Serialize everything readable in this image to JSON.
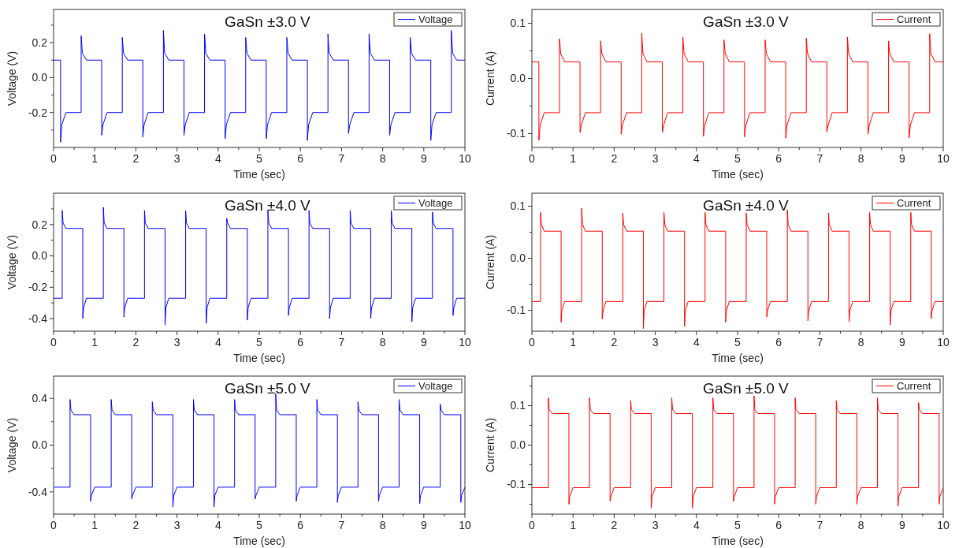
{
  "chart_data": [
    {
      "type": "line",
      "title": "GaSn ±3.0 V",
      "xlabel": "Time (sec)",
      "ylabel": "Voltage (V)",
      "legend": "top right",
      "xlim": [
        0,
        10
      ],
      "xticks": [
        0,
        {
          "value": 0.5,
          "label": null
        },
        1,
        {
          "value": 1.5,
          "label": null
        },
        2,
        {
          "value": 2.5,
          "label": null
        },
        3,
        {
          "value": 3.5,
          "label": null
        },
        4,
        {
          "value": 4.5,
          "label": null
        },
        5,
        {
          "value": 5.5,
          "label": null
        },
        6,
        {
          "value": 6.5,
          "label": null
        },
        7,
        {
          "value": 7.5,
          "label": null
        },
        8,
        {
          "value": 8.5,
          "label": null
        },
        9,
        {
          "value": 9.5,
          "label": null
        },
        10
      ],
      "ylim": [
        -0.4,
        0.39
      ],
      "yticks": [
        {
          "value": -0.3,
          "label": null
        },
        {
          "value": -0.2,
          "label": "-0.2"
        },
        {
          "value": -0.1,
          "label": null
        },
        {
          "value": 0,
          "label": "0.0"
        },
        {
          "value": 0.1,
          "label": null
        },
        {
          "value": 0.2,
          "label": "0.2"
        },
        {
          "value": 0.3,
          "label": null
        }
      ],
      "x": [
        0,
        0.17,
        0.17,
        0.2,
        0.3,
        0.67,
        0.67,
        0.7,
        0.8,
        1.17,
        1.17,
        1.2,
        1.3,
        1.67,
        1.67,
        1.7,
        1.8,
        2.17,
        2.17,
        2.2,
        2.3,
        2.67,
        2.67,
        2.7,
        2.8,
        3.17,
        3.17,
        3.2,
        3.3,
        3.67,
        3.67,
        3.7,
        3.8,
        4.17,
        4.17,
        4.2,
        4.3,
        4.67,
        4.67,
        4.7,
        4.8,
        5.17,
        5.17,
        5.2,
        5.3,
        5.67,
        5.67,
        5.7,
        5.8,
        6.17,
        6.17,
        6.2,
        6.3,
        6.67,
        6.67,
        6.7,
        6.8,
        7.17,
        7.17,
        7.2,
        7.3,
        7.67,
        7.67,
        7.7,
        7.8,
        8.17,
        8.17,
        8.2,
        8.3,
        8.67,
        8.67,
        8.7,
        8.8,
        9.17,
        9.17,
        9.2,
        9.3,
        9.67,
        9.67,
        9.7,
        9.8,
        10
      ],
      "series": [
        {
          "name": "Voltage",
          "color": "#0000ff",
          "values": [
            0.1,
            0.1,
            -0.37,
            -0.27,
            -0.2,
            -0.2,
            0.24,
            0.14,
            0.1,
            0.1,
            -0.33,
            -0.27,
            -0.2,
            -0.2,
            0.23,
            0.14,
            0.1,
            0.1,
            -0.34,
            -0.27,
            -0.2,
            -0.2,
            0.27,
            0.14,
            0.1,
            0.1,
            -0.33,
            -0.27,
            -0.2,
            -0.2,
            0.25,
            0.14,
            0.1,
            0.1,
            -0.35,
            -0.27,
            -0.2,
            -0.2,
            0.23,
            0.14,
            0.1,
            0.1,
            -0.35,
            -0.27,
            -0.2,
            -0.2,
            0.23,
            0.14,
            0.1,
            0.1,
            -0.36,
            -0.27,
            -0.2,
            -0.2,
            0.25,
            0.14,
            0.1,
            0.1,
            -0.32,
            -0.27,
            -0.2,
            -0.2,
            0.25,
            0.14,
            0.1,
            0.1,
            -0.33,
            -0.27,
            -0.2,
            -0.2,
            0.23,
            0.14,
            0.1,
            0.1,
            -0.36,
            -0.27,
            -0.2,
            -0.2,
            0.27,
            0.14,
            0.1,
            0.1
          ]
        }
      ]
    },
    {
      "type": "line",
      "title": "GaSn ±3.0 V",
      "xlabel": "Time (sec)",
      "ylabel": "Current (A)",
      "legend": "top right",
      "xlim": [
        0,
        10
      ],
      "xticks": [
        0,
        {
          "value": 0.5,
          "label": null
        },
        1,
        {
          "value": 1.5,
          "label": null
        },
        2,
        {
          "value": 2.5,
          "label": null
        },
        3,
        {
          "value": 3.5,
          "label": null
        },
        4,
        {
          "value": 4.5,
          "label": null
        },
        5,
        {
          "value": 5.5,
          "label": null
        },
        6,
        {
          "value": 6.5,
          "label": null
        },
        7,
        {
          "value": 7.5,
          "label": null
        },
        8,
        {
          "value": 8.5,
          "label": null
        },
        9,
        {
          "value": 9.5,
          "label": null
        },
        10
      ],
      "ylim": [
        -0.125,
        0.125
      ],
      "yticks": [
        {
          "value": -0.1,
          "label": "-0.1"
        },
        {
          "value": -0.05,
          "label": null
        },
        {
          "value": 0,
          "label": "0.0"
        },
        {
          "value": 0.05,
          "label": null
        },
        {
          "value": 0.1,
          "label": "0.1"
        }
      ],
      "x": [
        0,
        0.17,
        0.17,
        0.2,
        0.3,
        0.67,
        0.67,
        0.7,
        0.8,
        1.17,
        1.17,
        1.2,
        1.3,
        1.67,
        1.67,
        1.7,
        1.8,
        2.17,
        2.17,
        2.2,
        2.3,
        2.67,
        2.67,
        2.7,
        2.8,
        3.17,
        3.17,
        3.2,
        3.3,
        3.67,
        3.67,
        3.7,
        3.8,
        4.17,
        4.17,
        4.2,
        4.3,
        4.67,
        4.67,
        4.7,
        4.8,
        5.17,
        5.17,
        5.2,
        5.3,
        5.67,
        5.67,
        5.7,
        5.8,
        6.17,
        6.17,
        6.2,
        6.3,
        6.67,
        6.67,
        6.7,
        6.8,
        7.17,
        7.17,
        7.2,
        7.3,
        7.67,
        7.67,
        7.7,
        7.8,
        8.17,
        8.17,
        8.2,
        8.3,
        8.67,
        8.67,
        8.7,
        8.8,
        9.17,
        9.17,
        9.2,
        9.3,
        9.67,
        9.67,
        9.7,
        9.8,
        10
      ],
      "series": [
        {
          "name": "Current",
          "color": "#ff0000",
          "values": [
            0.03,
            0.03,
            -0.112,
            -0.085,
            -0.062,
            -0.062,
            0.072,
            0.045,
            0.03,
            0.03,
            -0.098,
            -0.085,
            -0.062,
            -0.062,
            0.068,
            0.045,
            0.03,
            0.03,
            -0.101,
            -0.085,
            -0.062,
            -0.062,
            0.082,
            0.045,
            0.03,
            0.03,
            -0.098,
            -0.085,
            -0.062,
            -0.062,
            0.075,
            0.045,
            0.03,
            0.03,
            -0.105,
            -0.085,
            -0.062,
            -0.062,
            0.07,
            0.045,
            0.03,
            0.03,
            -0.106,
            -0.085,
            -0.062,
            -0.062,
            0.07,
            0.045,
            0.03,
            0.03,
            -0.108,
            -0.085,
            -0.062,
            -0.062,
            0.073,
            0.045,
            0.03,
            0.03,
            -0.097,
            -0.085,
            -0.062,
            -0.062,
            0.075,
            0.045,
            0.03,
            0.03,
            -0.101,
            -0.085,
            -0.062,
            -0.062,
            0.068,
            0.045,
            0.03,
            0.03,
            -0.108,
            -0.085,
            -0.062,
            -0.062,
            0.081,
            0.045,
            0.03,
            0.03
          ]
        }
      ]
    },
    {
      "type": "line",
      "title": "GaSn ±4.0 V",
      "xlabel": "Time (sec)",
      "ylabel": "Voltage (V)",
      "legend": "top right",
      "xlim": [
        0,
        10
      ],
      "xticks": [
        0,
        {
          "value": 0.5,
          "label": null
        },
        1,
        {
          "value": 1.5,
          "label": null
        },
        2,
        {
          "value": 2.5,
          "label": null
        },
        3,
        {
          "value": 3.5,
          "label": null
        },
        4,
        {
          "value": 4.5,
          "label": null
        },
        5,
        {
          "value": 5.5,
          "label": null
        },
        6,
        {
          "value": 6.5,
          "label": null
        },
        7,
        {
          "value": 7.5,
          "label": null
        },
        8,
        {
          "value": 8.5,
          "label": null
        },
        9,
        {
          "value": 9.5,
          "label": null
        },
        10
      ],
      "ylim": [
        -0.48,
        0.4
      ],
      "yticks": [
        {
          "value": -0.4,
          "label": "-0.4"
        },
        {
          "value": -0.3,
          "label": null
        },
        {
          "value": -0.2,
          "label": "-0.2"
        },
        {
          "value": -0.1,
          "label": null
        },
        {
          "value": 0,
          "label": "0.0"
        },
        {
          "value": 0.1,
          "label": null
        },
        {
          "value": 0.2,
          "label": "0.2"
        },
        {
          "value": 0.3,
          "label": null
        }
      ],
      "x": [
        0,
        0.21,
        0.21,
        0.23,
        0.3,
        0.71,
        0.71,
        0.73,
        0.8,
        1.21,
        1.21,
        1.23,
        1.3,
        1.71,
        1.71,
        1.73,
        1.8,
        2.21,
        2.21,
        2.23,
        2.3,
        2.71,
        2.71,
        2.73,
        2.8,
        3.21,
        3.21,
        3.23,
        3.3,
        3.71,
        3.71,
        3.73,
        3.8,
        4.21,
        4.21,
        4.23,
        4.3,
        4.71,
        4.71,
        4.73,
        4.8,
        5.21,
        5.21,
        5.23,
        5.3,
        5.71,
        5.71,
        5.73,
        5.8,
        6.21,
        6.21,
        6.23,
        6.3,
        6.71,
        6.71,
        6.73,
        6.8,
        7.21,
        7.21,
        7.23,
        7.3,
        7.71,
        7.71,
        7.73,
        7.8,
        8.21,
        8.21,
        8.23,
        8.3,
        8.71,
        8.71,
        8.73,
        8.8,
        9.21,
        9.21,
        9.23,
        9.3,
        9.71,
        9.71,
        9.73,
        9.8,
        10
      ],
      "series": [
        {
          "name": "Voltage",
          "color": "#0000ff",
          "values": [
            -0.27,
            -0.27,
            0.29,
            0.21,
            0.175,
            0.175,
            -0.4,
            -0.33,
            -0.27,
            -0.27,
            0.31,
            0.21,
            0.175,
            0.175,
            -0.39,
            -0.33,
            -0.27,
            -0.27,
            0.29,
            0.21,
            0.175,
            0.175,
            -0.44,
            -0.33,
            -0.27,
            -0.27,
            0.29,
            0.21,
            0.175,
            0.175,
            -0.43,
            -0.33,
            -0.27,
            -0.27,
            0.24,
            0.21,
            0.175,
            0.175,
            -0.41,
            -0.33,
            -0.27,
            -0.27,
            0.29,
            0.21,
            0.175,
            0.175,
            -0.38,
            -0.33,
            -0.27,
            -0.27,
            0.29,
            0.21,
            0.175,
            0.175,
            -0.4,
            -0.33,
            -0.27,
            -0.27,
            0.29,
            0.21,
            0.175,
            0.175,
            -0.4,
            -0.33,
            -0.27,
            -0.27,
            0.29,
            0.21,
            0.175,
            0.175,
            -0.42,
            -0.33,
            -0.27,
            -0.27,
            0.28,
            0.21,
            0.175,
            0.175,
            -0.38,
            -0.33,
            -0.27,
            -0.27
          ]
        }
      ]
    },
    {
      "type": "line",
      "title": "GaSn ±4.0 V",
      "xlabel": "Time (sec)",
      "ylabel": "Current (A)",
      "legend": "top right",
      "xlim": [
        0,
        10
      ],
      "xticks": [
        0,
        {
          "value": 0.5,
          "label": null
        },
        1,
        {
          "value": 1.5,
          "label": null
        },
        2,
        {
          "value": 2.5,
          "label": null
        },
        3,
        {
          "value": 3.5,
          "label": null
        },
        4,
        {
          "value": 4.5,
          "label": null
        },
        5,
        {
          "value": 5.5,
          "label": null
        },
        6,
        {
          "value": 6.5,
          "label": null
        },
        7,
        {
          "value": 7.5,
          "label": null
        },
        8,
        {
          "value": 8.5,
          "label": null
        },
        9,
        {
          "value": 9.5,
          "label": null
        },
        10
      ],
      "ylim": [
        -0.14,
        0.125
      ],
      "yticks": [
        {
          "value": -0.1,
          "label": "-0.1"
        },
        {
          "value": -0.05,
          "label": null
        },
        {
          "value": 0,
          "label": "0.0"
        },
        {
          "value": 0.05,
          "label": null
        },
        {
          "value": 0.1,
          "label": "0.1"
        }
      ],
      "x": [
        0,
        0.21,
        0.21,
        0.23,
        0.3,
        0.71,
        0.71,
        0.73,
        0.8,
        1.21,
        1.21,
        1.23,
        1.3,
        1.71,
        1.71,
        1.73,
        1.8,
        2.21,
        2.21,
        2.23,
        2.3,
        2.71,
        2.71,
        2.73,
        2.8,
        3.21,
        3.21,
        3.23,
        3.3,
        3.71,
        3.71,
        3.73,
        3.8,
        4.21,
        4.21,
        4.23,
        4.3,
        4.71,
        4.71,
        4.73,
        4.8,
        5.21,
        5.21,
        5.23,
        5.3,
        5.71,
        5.71,
        5.73,
        5.8,
        6.21,
        6.21,
        6.23,
        6.3,
        6.71,
        6.71,
        6.73,
        6.8,
        7.21,
        7.21,
        7.23,
        7.3,
        7.71,
        7.71,
        7.73,
        7.8,
        8.21,
        8.21,
        8.23,
        8.3,
        8.71,
        8.71,
        8.73,
        8.8,
        9.21,
        9.21,
        9.23,
        9.3,
        9.71,
        9.71,
        9.73,
        9.8,
        10
      ],
      "series": [
        {
          "name": "Current",
          "color": "#ff0000",
          "values": [
            -0.083,
            -0.083,
            0.088,
            0.065,
            0.052,
            0.052,
            -0.123,
            -0.1,
            -0.083,
            -0.083,
            0.096,
            0.065,
            0.052,
            0.052,
            -0.117,
            -0.1,
            -0.083,
            -0.083,
            0.087,
            0.065,
            0.052,
            0.052,
            -0.135,
            -0.1,
            -0.083,
            -0.083,
            0.088,
            0.065,
            0.052,
            0.052,
            -0.131,
            -0.1,
            -0.083,
            -0.083,
            0.088,
            0.065,
            0.052,
            0.052,
            -0.123,
            -0.1,
            -0.083,
            -0.083,
            0.087,
            0.065,
            0.052,
            0.052,
            -0.113,
            -0.1,
            -0.083,
            -0.083,
            0.093,
            0.065,
            0.052,
            0.052,
            -0.12,
            -0.1,
            -0.083,
            -0.083,
            0.087,
            0.065,
            0.052,
            0.052,
            -0.122,
            -0.1,
            -0.083,
            -0.083,
            0.088,
            0.065,
            0.052,
            0.052,
            -0.128,
            -0.1,
            -0.083,
            -0.083,
            0.088,
            0.065,
            0.052,
            0.052,
            -0.116,
            -0.1,
            -0.083,
            -0.083
          ]
        }
      ]
    },
    {
      "type": "line",
      "title": "GaSn ±5.0 V",
      "xlabel": "Time (sec)",
      "ylabel": "Voltage (V)",
      "legend": "top right",
      "xlim": [
        0,
        10
      ],
      "xticks": [
        0,
        {
          "value": 0.5,
          "label": null
        },
        1,
        {
          "value": 1.5,
          "label": null
        },
        2,
        {
          "value": 2.5,
          "label": null
        },
        3,
        {
          "value": 3.5,
          "label": null
        },
        4,
        {
          "value": 4.5,
          "label": null
        },
        5,
        {
          "value": 5.5,
          "label": null
        },
        6,
        {
          "value": 6.5,
          "label": null
        },
        7,
        {
          "value": 7.5,
          "label": null
        },
        8,
        {
          "value": 8.5,
          "label": null
        },
        9,
        {
          "value": 9.5,
          "label": null
        },
        10
      ],
      "ylim": [
        -0.59,
        0.59
      ],
      "yticks": [
        {
          "value": -0.4,
          "label": "-0.4"
        },
        {
          "value": -0.2,
          "label": null
        },
        {
          "value": 0,
          "label": "0.0"
        },
        {
          "value": 0.2,
          "label": null
        },
        {
          "value": 0.4,
          "label": "0.4"
        }
      ],
      "x": [
        0,
        0.4,
        0.4,
        0.42,
        0.5,
        0.9,
        0.9,
        0.92,
        1,
        1.4,
        1.4,
        1.42,
        1.5,
        1.9,
        1.9,
        1.92,
        2,
        2.4,
        2.4,
        2.42,
        2.5,
        2.9,
        2.9,
        2.92,
        3,
        3.4,
        3.4,
        3.42,
        3.5,
        3.9,
        3.9,
        3.92,
        4,
        4.4,
        4.4,
        4.42,
        4.5,
        4.9,
        4.9,
        4.92,
        5,
        5.4,
        5.4,
        5.42,
        5.5,
        5.9,
        5.9,
        5.92,
        6,
        6.4,
        6.4,
        6.42,
        6.5,
        6.9,
        6.9,
        6.92,
        7,
        7.4,
        7.4,
        7.42,
        7.5,
        7.9,
        7.9,
        7.92,
        8,
        8.4,
        8.4,
        8.42,
        8.5,
        8.9,
        8.9,
        8.92,
        9,
        9.4,
        9.4,
        9.42,
        9.5,
        9.9,
        9.9,
        9.92,
        10
      ],
      "series": [
        {
          "name": "Voltage",
          "color": "#0000ff",
          "values": [
            -0.36,
            -0.36,
            0.39,
            0.3,
            0.26,
            0.26,
            -0.48,
            -0.43,
            -0.36,
            -0.36,
            0.39,
            0.3,
            0.26,
            0.26,
            -0.46,
            -0.43,
            -0.36,
            -0.36,
            0.37,
            0.3,
            0.26,
            0.26,
            -0.53,
            -0.43,
            -0.36,
            -0.36,
            0.39,
            0.3,
            0.26,
            0.26,
            -0.53,
            -0.43,
            -0.36,
            -0.36,
            0.39,
            0.3,
            0.26,
            0.26,
            -0.46,
            -0.43,
            -0.36,
            -0.36,
            0.44,
            0.3,
            0.26,
            0.26,
            -0.48,
            -0.43,
            -0.36,
            -0.36,
            0.39,
            0.3,
            0.26,
            0.26,
            -0.49,
            -0.43,
            -0.36,
            -0.36,
            0.37,
            0.3,
            0.26,
            0.26,
            -0.48,
            -0.43,
            -0.36,
            -0.36,
            0.39,
            0.3,
            0.26,
            0.26,
            -0.5,
            -0.43,
            -0.36,
            -0.36,
            0.35,
            0.3,
            0.26,
            0.26,
            -0.49,
            -0.43,
            -0.36
          ]
        }
      ]
    },
    {
      "type": "line",
      "title": "GaSn ±5.0 V",
      "xlabel": "Time (sec)",
      "ylabel": "Current (A)",
      "legend": "top right",
      "xlim": [
        0,
        10
      ],
      "xticks": [
        0,
        {
          "value": 0.5,
          "label": null
        },
        1,
        {
          "value": 1.5,
          "label": null
        },
        2,
        {
          "value": 2.5,
          "label": null
        },
        3,
        {
          "value": 3.5,
          "label": null
        },
        4,
        {
          "value": 4.5,
          "label": null
        },
        5,
        {
          "value": 5.5,
          "label": null
        },
        6,
        {
          "value": 6.5,
          "label": null
        },
        7,
        {
          "value": 7.5,
          "label": null
        },
        8,
        {
          "value": 8.5,
          "label": null
        },
        9,
        {
          "value": 9.5,
          "label": null
        },
        10
      ],
      "ylim": [
        -0.175,
        0.175
      ],
      "yticks": [
        {
          "value": -0.15,
          "label": null
        },
        {
          "value": -0.1,
          "label": "-0.1"
        },
        {
          "value": -0.05,
          "label": null
        },
        {
          "value": 0,
          "label": "0.0"
        },
        {
          "value": 0.05,
          "label": null
        },
        {
          "value": 0.1,
          "label": "0.1"
        },
        {
          "value": 0.15,
          "label": null
        }
      ],
      "x": [
        0,
        0.4,
        0.4,
        0.42,
        0.5,
        0.9,
        0.9,
        0.92,
        1,
        1.4,
        1.4,
        1.42,
        1.5,
        1.9,
        1.9,
        1.92,
        2,
        2.4,
        2.4,
        2.42,
        2.5,
        2.9,
        2.9,
        2.92,
        3,
        3.4,
        3.4,
        3.42,
        3.5,
        3.9,
        3.9,
        3.92,
        4,
        4.4,
        4.4,
        4.42,
        4.5,
        4.9,
        4.9,
        4.92,
        5,
        5.4,
        5.4,
        5.42,
        5.5,
        5.9,
        5.9,
        5.92,
        6,
        6.4,
        6.4,
        6.42,
        6.5,
        6.9,
        6.9,
        6.92,
        7,
        7.4,
        7.4,
        7.42,
        7.5,
        7.9,
        7.9,
        7.92,
        8,
        8.4,
        8.4,
        8.42,
        8.5,
        8.9,
        8.9,
        8.92,
        9,
        9.4,
        9.4,
        9.42,
        9.5,
        9.9,
        9.9,
        9.92,
        10
      ],
      "series": [
        {
          "name": "Current",
          "color": "#ff0000",
          "values": [
            -0.108,
            -0.108,
            0.12,
            0.09,
            0.08,
            0.08,
            -0.15,
            -0.13,
            -0.108,
            -0.108,
            0.12,
            0.09,
            0.08,
            0.08,
            -0.142,
            -0.13,
            -0.108,
            -0.108,
            0.113,
            0.09,
            0.08,
            0.08,
            -0.16,
            -0.13,
            -0.108,
            -0.108,
            0.12,
            0.09,
            0.08,
            0.08,
            -0.16,
            -0.13,
            -0.108,
            -0.108,
            0.12,
            0.09,
            0.08,
            0.08,
            -0.143,
            -0.13,
            -0.108,
            -0.108,
            0.125,
            0.09,
            0.08,
            0.08,
            -0.15,
            -0.13,
            -0.108,
            -0.108,
            0.12,
            0.09,
            0.08,
            0.08,
            -0.15,
            -0.13,
            -0.108,
            -0.108,
            0.113,
            0.09,
            0.08,
            0.08,
            -0.15,
            -0.13,
            -0.108,
            -0.108,
            0.12,
            0.09,
            0.08,
            0.08,
            -0.155,
            -0.13,
            -0.108,
            -0.108,
            0.108,
            0.09,
            0.08,
            0.08,
            -0.15,
            -0.13,
            -0.108
          ]
        }
      ]
    }
  ]
}
